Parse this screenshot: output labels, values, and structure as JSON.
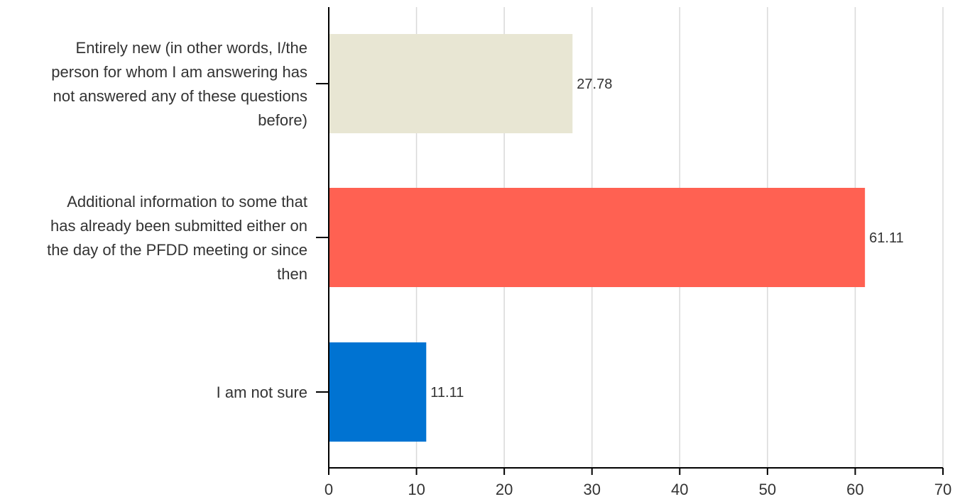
{
  "chart_data": {
    "type": "bar",
    "orientation": "horizontal",
    "categories": [
      [
        "Entirely new (in other words, I/the",
        "person for whom I am answering has",
        "not answered any of these questions",
        "before)"
      ],
      [
        "Additional information to some that",
        "has already been submitted either on",
        "the day of the PFDD meeting or since",
        "then"
      ],
      [
        "I am not sure"
      ]
    ],
    "values": [
      27.78,
      61.11,
      11.11
    ],
    "value_labels": [
      "27.78",
      "61.11",
      "11.11"
    ],
    "colors": [
      "#e8e6d3",
      "#ff6152",
      "#0073d2"
    ],
    "xlim": [
      0,
      70
    ],
    "xticks": [
      0,
      10,
      20,
      30,
      40,
      50,
      60,
      70
    ],
    "grid": true,
    "title": "",
    "xlabel": "",
    "ylabel": ""
  }
}
